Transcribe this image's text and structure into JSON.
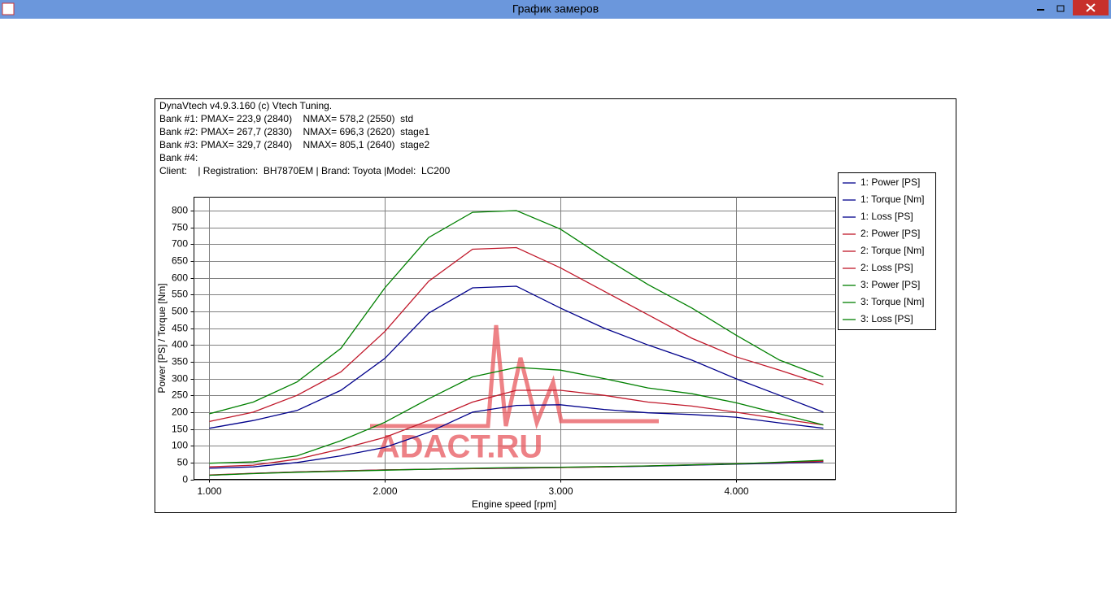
{
  "window": {
    "title": "График замеров"
  },
  "chart_data": {
    "type": "line",
    "header_lines": [
      "DynaVtech v4.9.3.160 (c) Vtech Tuning.",
      "Bank #1: PMAX= 223,9 (2840)    NMAX= 578,2 (2550)  std",
      "Bank #2: PMAX= 267,7 (2830)    NMAX= 696,3 (2620)  stage1",
      "Bank #3: PMAX= 329,7 (2840)    NMAX= 805,1 (2640)  stage2",
      "Bank #4:",
      "Client:    | Registration:  BH7870EM | Brand: Toyota |Model:  LC200"
    ],
    "x_label": "Engine speed [rpm]",
    "y_label": "Power [PS] / Torque [Nm]",
    "watermark": "ADACT.RU",
    "xlim": [
      912,
      4570
    ],
    "ylim": [
      0,
      840
    ],
    "xticks": [
      {
        "value": 1000,
        "label": "1.000"
      },
      {
        "value": 2000,
        "label": "2.000"
      },
      {
        "value": 3000,
        "label": "3.000"
      },
      {
        "value": 4000,
        "label": "4.000"
      }
    ],
    "yticks": [
      0,
      50,
      100,
      150,
      200,
      250,
      300,
      350,
      400,
      450,
      500,
      550,
      600,
      650,
      700,
      750,
      800
    ],
    "grid": true,
    "x": [
      1000,
      1250,
      1500,
      1750,
      2000,
      2250,
      2500,
      2750,
      3000,
      3250,
      3500,
      3750,
      4000,
      4250,
      4500
    ],
    "series": [
      {
        "name": "1: Power [PS]",
        "color": "#00008b",
        "values": [
          33,
          37,
          50,
          70,
          95,
          140,
          200,
          220,
          222,
          208,
          198,
          193,
          185,
          168,
          152
        ]
      },
      {
        "name": "1: Torque [Nm]",
        "color": "#00008b",
        "values": [
          152,
          175,
          205,
          265,
          360,
          495,
          570,
          575,
          510,
          450,
          400,
          355,
          300,
          250,
          200
        ]
      },
      {
        "name": "1: Loss [PS]",
        "color": "#00008b",
        "values": [
          12,
          18,
          22,
          25,
          28,
          30,
          32,
          33,
          35,
          37,
          39,
          42,
          45,
          48,
          52
        ]
      },
      {
        "name": "2: Power [PS]",
        "color": "#c0182a",
        "values": [
          37,
          42,
          60,
          90,
          125,
          175,
          230,
          265,
          265,
          250,
          230,
          218,
          200,
          180,
          162
        ]
      },
      {
        "name": "2: Torque [Nm]",
        "color": "#c0182a",
        "values": [
          172,
          200,
          250,
          320,
          440,
          590,
          685,
          690,
          630,
          560,
          490,
          420,
          365,
          325,
          282
        ]
      },
      {
        "name": "2: Loss [PS]",
        "color": "#c0182a",
        "values": [
          13,
          18,
          22,
          25,
          28,
          30,
          32,
          34,
          35,
          37,
          40,
          43,
          46,
          50,
          54
        ]
      },
      {
        "name": "3: Power [PS]",
        "color": "#008000",
        "values": [
          48,
          52,
          70,
          115,
          170,
          240,
          305,
          333,
          325,
          300,
          272,
          255,
          228,
          195,
          162
        ]
      },
      {
        "name": "3: Torque [Nm]",
        "color": "#008000",
        "values": [
          195,
          230,
          290,
          390,
          570,
          720,
          795,
          800,
          745,
          660,
          580,
          510,
          430,
          355,
          305
        ]
      },
      {
        "name": "3: Loss [PS]",
        "color": "#008000",
        "values": [
          12,
          17,
          21,
          24,
          27,
          30,
          33,
          35,
          36,
          38,
          40,
          43,
          46,
          51,
          57
        ]
      }
    ]
  }
}
